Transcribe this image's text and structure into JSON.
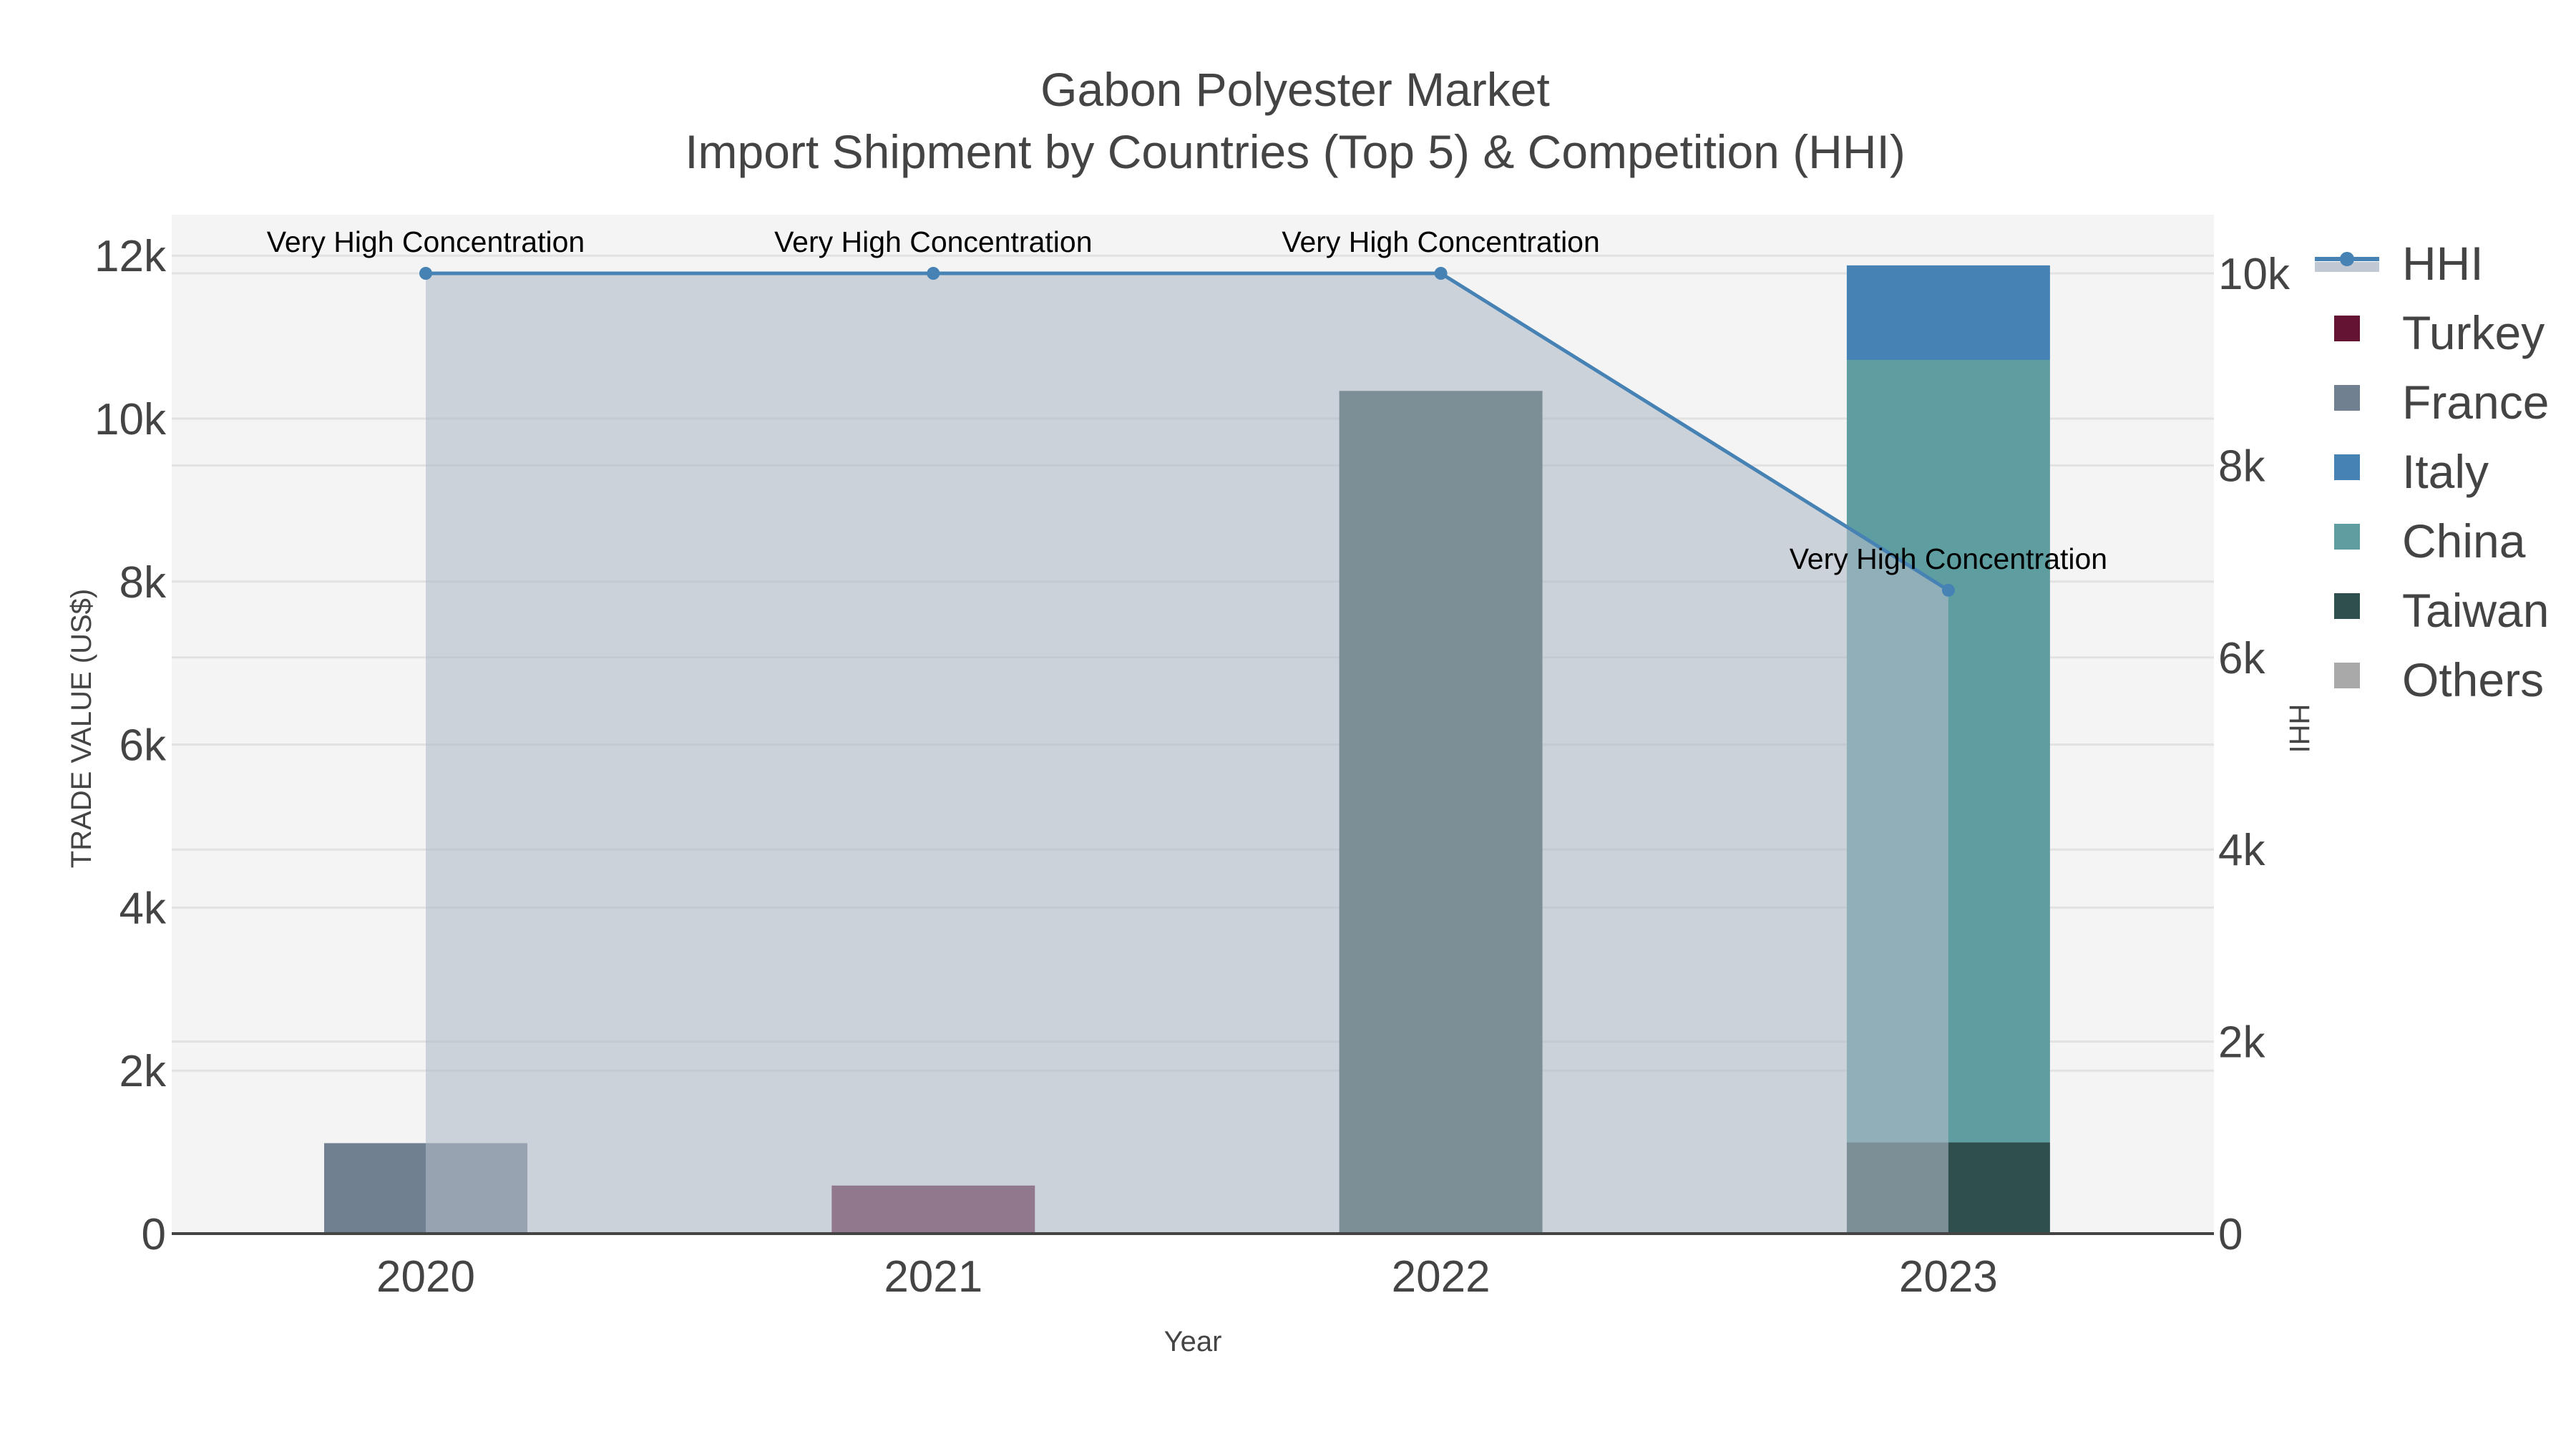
{
  "title": {
    "line1": "Gabon Polyester Market",
    "line2": "Import Shipment by Countries (Top 5) & Competition (HHI)"
  },
  "axes": {
    "x_title": "Year",
    "y_left_title": "TRADE VALUE (US$)",
    "y_right_title": "HHI",
    "y_left_ticks": [
      "0",
      "2k",
      "4k",
      "6k",
      "8k",
      "10k",
      "12k"
    ],
    "y_right_ticks": [
      "0",
      "2k",
      "4k",
      "6k",
      "8k",
      "10k"
    ],
    "x_ticks": [
      "2020",
      "2021",
      "2022",
      "2023"
    ]
  },
  "legend": {
    "items": [
      {
        "label": "HHI",
        "type": "line",
        "color": "#4682B4"
      },
      {
        "label": "Turkey",
        "type": "box",
        "color": "#641432"
      },
      {
        "label": "France",
        "type": "box",
        "color": "#708090"
      },
      {
        "label": "Italy",
        "type": "box",
        "color": "#4682B4"
      },
      {
        "label": "China",
        "type": "box",
        "color": "#5F9EA0"
      },
      {
        "label": "Taiwan",
        "type": "box",
        "color": "#2F4F4F"
      },
      {
        "label": "Others",
        "type": "box",
        "color": "#A9A9A9"
      }
    ]
  },
  "colors": {
    "plot_bg": "#F4F4F4",
    "grid": "#E2E2E2",
    "hhi_line": "#4682B4",
    "hhi_fill": "rgba(176,186,200,0.6)",
    "axis_line": "#444444"
  },
  "chart_data": {
    "type": "bar",
    "stacked": true,
    "title": "Gabon Polyester Market — Import Shipment by Countries (Top 5) & Competition (HHI)",
    "xlabel": "Year",
    "ylabel": "TRADE VALUE (US$)",
    "y2label": "HHI",
    "categories": [
      "2020",
      "2021",
      "2022",
      "2023"
    ],
    "ylim": [
      0,
      12500
    ],
    "y2lim": [
      0,
      10500
    ],
    "grid": true,
    "legend_position": "right",
    "series": [
      {
        "name": "Taiwan",
        "color": "#2F4F4F",
        "values": [
          0,
          0,
          10340,
          1120
        ]
      },
      {
        "name": "China",
        "color": "#5F9EA0",
        "values": [
          0,
          0,
          0,
          9600
        ]
      },
      {
        "name": "Italy",
        "color": "#4682B4",
        "values": [
          0,
          0,
          0,
          1160
        ]
      },
      {
        "name": "France",
        "color": "#708090",
        "values": [
          1110,
          0,
          0,
          0
        ]
      },
      {
        "name": "Turkey",
        "color": "#641432",
        "values": [
          0,
          590,
          0,
          0
        ]
      },
      {
        "name": "Others",
        "color": "#A9A9A9",
        "values": [
          0,
          0,
          0,
          0
        ]
      }
    ],
    "line_series": {
      "name": "HHI",
      "axis": "right",
      "type": "line+area",
      "color": "#4682B4",
      "values": [
        10000,
        10000,
        10000,
        6700
      ],
      "annotations": [
        "Very High Concentration",
        "Very High Concentration",
        "Very High Concentration",
        "Very High Concentration"
      ]
    }
  }
}
